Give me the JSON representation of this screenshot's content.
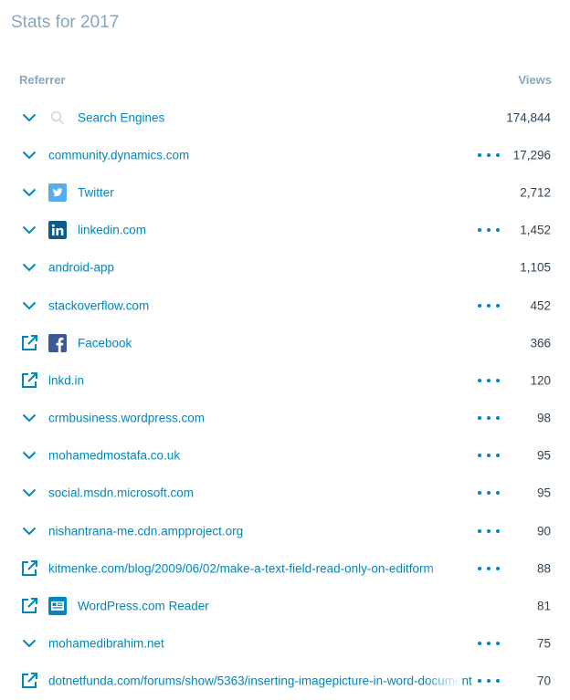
{
  "page": {
    "title": "Stats for 2017"
  },
  "table": {
    "col_referrer": "Referrer",
    "col_views": "Views",
    "rows": [
      {
        "control": "expand",
        "icon": "search",
        "label": "Search Engines",
        "more": false,
        "views": "174,844"
      },
      {
        "control": "expand",
        "icon": "",
        "label": "community.dynamics.com",
        "more": true,
        "views": "17,296"
      },
      {
        "control": "expand",
        "icon": "twitter",
        "label": "Twitter",
        "more": false,
        "views": "2,712"
      },
      {
        "control": "expand",
        "icon": "linkedin",
        "label": "linkedin.com",
        "more": true,
        "views": "1,452"
      },
      {
        "control": "expand",
        "icon": "",
        "label": "android-app",
        "more": false,
        "views": "1,105"
      },
      {
        "control": "expand",
        "icon": "",
        "label": "stackoverflow.com",
        "more": true,
        "views": "452"
      },
      {
        "control": "external",
        "icon": "facebook",
        "label": "Facebook",
        "more": false,
        "views": "366"
      },
      {
        "control": "external",
        "icon": "",
        "label": "lnkd.in",
        "more": true,
        "views": "120"
      },
      {
        "control": "expand",
        "icon": "",
        "label": "crmbusiness.wordpress.com",
        "more": true,
        "views": "98"
      },
      {
        "control": "expand",
        "icon": "",
        "label": "mohamedmostafa.co.uk",
        "more": true,
        "views": "95"
      },
      {
        "control": "expand",
        "icon": "",
        "label": "social.msdn.microsoft.com",
        "more": true,
        "views": "95"
      },
      {
        "control": "expand",
        "icon": "",
        "label": "nishantrana-me.cdn.ampproject.org",
        "more": true,
        "views": "90"
      },
      {
        "control": "external",
        "icon": "",
        "label": "kitmenke.com/blog/2009/06/02/make-a-text-field-read-only-on-editform",
        "more": true,
        "views": "88",
        "truncate": true
      },
      {
        "control": "external",
        "icon": "reader",
        "label": "WordPress.com Reader",
        "more": false,
        "views": "81"
      },
      {
        "control": "expand",
        "icon": "",
        "label": "mohamedibrahim.net",
        "more": true,
        "views": "75"
      },
      {
        "control": "external",
        "icon": "",
        "label": "dotnetfunda.com/forums/show/5363/inserting-imagepicture-in-word-document",
        "more": true,
        "views": "70",
        "truncate": true
      }
    ]
  },
  "colors": {
    "link": "#0087be",
    "muted": "#87a6bc",
    "text": "#2e4453"
  }
}
